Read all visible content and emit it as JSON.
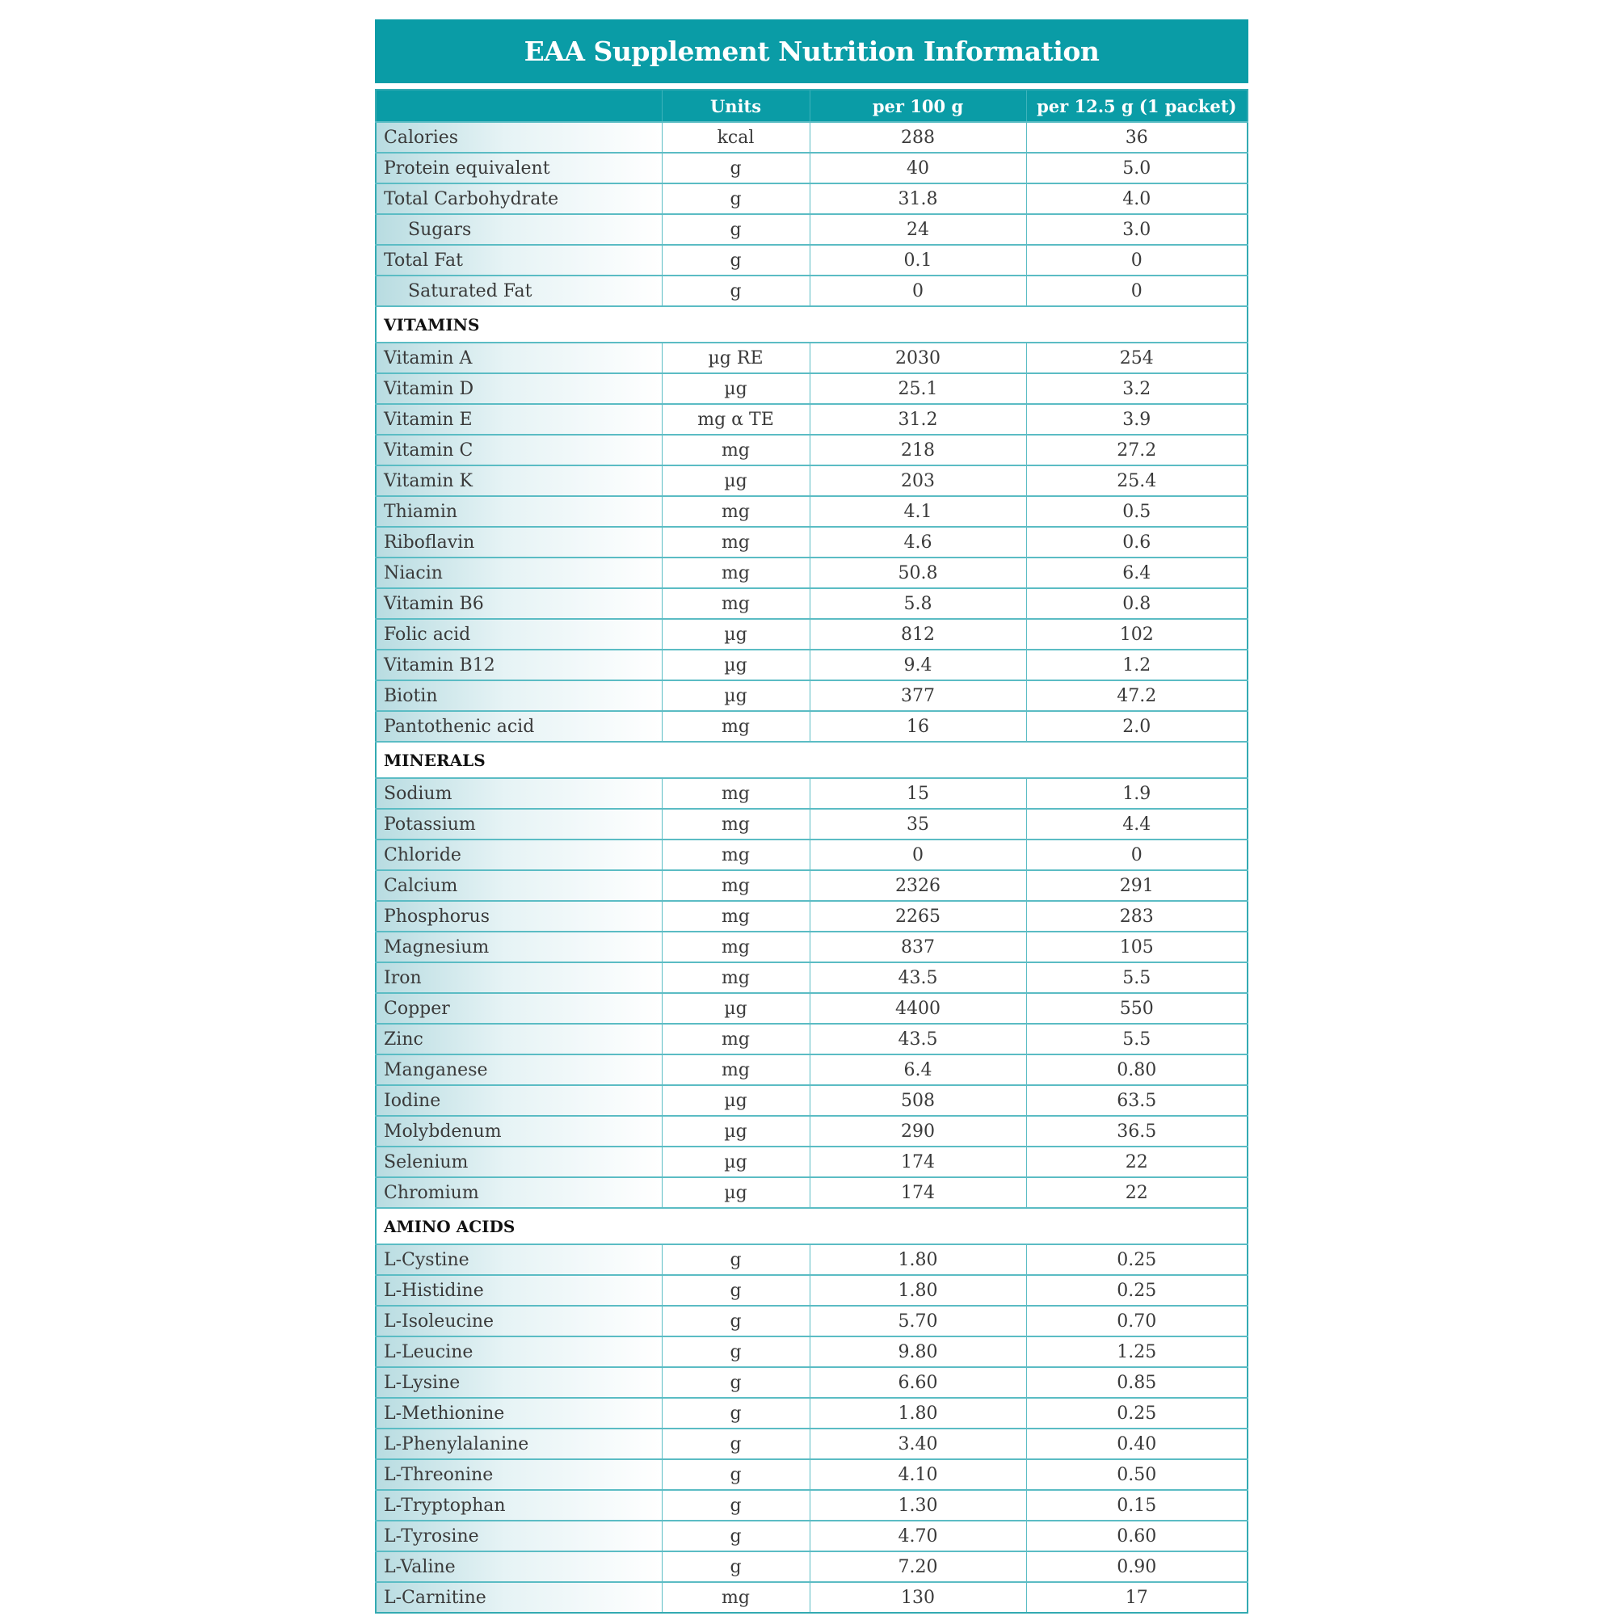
{
  "title": "EAA Supplement Nutrition Information",
  "colors": {
    "header_bg": "#0a9ca6",
    "border": "#5bbcc4",
    "row_gradient_start": "#b8dce1"
  },
  "columns": [
    "",
    "Units",
    "per 100 g",
    "per 12.5 g (1 packet)"
  ],
  "groups": [
    {
      "section": "",
      "rows": [
        {
          "name": "Calories",
          "unit": "kcal",
          "per100": "288",
          "perPacket": "36"
        },
        {
          "name": "Protein equivalent",
          "unit": "g",
          "per100": "40",
          "perPacket": "5.0"
        },
        {
          "name": "Total Carbohydrate",
          "unit": "g",
          "per100": "31.8",
          "perPacket": "4.0"
        },
        {
          "name": "Sugars",
          "unit": "g",
          "per100": "24",
          "perPacket": "3.0",
          "indent": true
        },
        {
          "name": "Total Fat",
          "unit": "g",
          "per100": "0.1",
          "perPacket": "0"
        },
        {
          "name": "Saturated Fat",
          "unit": "g",
          "per100": "0",
          "perPacket": "0",
          "indent": true
        }
      ]
    },
    {
      "section": "VITAMINS",
      "rows": [
        {
          "name": "Vitamin A",
          "unit": "µg RE",
          "per100": "2030",
          "perPacket": "254"
        },
        {
          "name": "Vitamin D",
          "unit": "µg",
          "per100": "25.1",
          "perPacket": "3.2"
        },
        {
          "name": "Vitamin E",
          "unit": "mg α TE",
          "per100": "31.2",
          "perPacket": "3.9"
        },
        {
          "name": "Vitamin C",
          "unit": "mg",
          "per100": "218",
          "perPacket": "27.2"
        },
        {
          "name": "Vitamin K",
          "unit": "µg",
          "per100": "203",
          "perPacket": "25.4"
        },
        {
          "name": "Thiamin",
          "unit": "mg",
          "per100": "4.1",
          "perPacket": "0.5"
        },
        {
          "name": "Riboflavin",
          "unit": "mg",
          "per100": "4.6",
          "perPacket": "0.6"
        },
        {
          "name": "Niacin",
          "unit": "mg",
          "per100": "50.8",
          "perPacket": "6.4"
        },
        {
          "name": "Vitamin B6",
          "unit": "mg",
          "per100": "5.8",
          "perPacket": "0.8"
        },
        {
          "name": "Folic acid",
          "unit": "µg",
          "per100": "812",
          "perPacket": "102"
        },
        {
          "name": "Vitamin B12",
          "unit": "µg",
          "per100": "9.4",
          "perPacket": "1.2"
        },
        {
          "name": "Biotin",
          "unit": "µg",
          "per100": "377",
          "perPacket": "47.2"
        },
        {
          "name": "Pantothenic acid",
          "unit": "mg",
          "per100": "16",
          "perPacket": "2.0"
        }
      ]
    },
    {
      "section": "MINERALS",
      "rows": [
        {
          "name": "Sodium",
          "unit": "mg",
          "per100": "15",
          "perPacket": "1.9"
        },
        {
          "name": "Potassium",
          "unit": "mg",
          "per100": "35",
          "perPacket": "4.4"
        },
        {
          "name": "Chloride",
          "unit": "mg",
          "per100": "0",
          "perPacket": "0"
        },
        {
          "name": "Calcium",
          "unit": "mg",
          "per100": "2326",
          "perPacket": "291"
        },
        {
          "name": "Phosphorus",
          "unit": "mg",
          "per100": "2265",
          "perPacket": "283"
        },
        {
          "name": "Magnesium",
          "unit": "mg",
          "per100": "837",
          "perPacket": "105"
        },
        {
          "name": "Iron",
          "unit": "mg",
          "per100": "43.5",
          "perPacket": "5.5"
        },
        {
          "name": "Copper",
          "unit": "µg",
          "per100": "4400",
          "perPacket": "550"
        },
        {
          "name": "Zinc",
          "unit": "mg",
          "per100": "43.5",
          "perPacket": "5.5"
        },
        {
          "name": "Manganese",
          "unit": "mg",
          "per100": "6.4",
          "perPacket": "0.80"
        },
        {
          "name": "Iodine",
          "unit": "µg",
          "per100": "508",
          "perPacket": "63.5"
        },
        {
          "name": "Molybdenum",
          "unit": "µg",
          "per100": "290",
          "perPacket": "36.5"
        },
        {
          "name": "Selenium",
          "unit": "µg",
          "per100": "174",
          "perPacket": "22"
        },
        {
          "name": "Chromium",
          "unit": "µg",
          "per100": "174",
          "perPacket": "22"
        }
      ]
    },
    {
      "section": "AMINO ACIDS",
      "rows": [
        {
          "name": "L-Cystine",
          "unit": "g",
          "per100": "1.80",
          "perPacket": "0.25"
        },
        {
          "name": "L-Histidine",
          "unit": "g",
          "per100": "1.80",
          "perPacket": "0.25"
        },
        {
          "name": "L-Isoleucine",
          "unit": "g",
          "per100": "5.70",
          "perPacket": "0.70"
        },
        {
          "name": "L-Leucine",
          "unit": "g",
          "per100": "9.80",
          "perPacket": "1.25"
        },
        {
          "name": "L-Lysine",
          "unit": "g",
          "per100": "6.60",
          "perPacket": "0.85"
        },
        {
          "name": "L-Methionine",
          "unit": "g",
          "per100": "1.80",
          "perPacket": "0.25"
        },
        {
          "name": "L-Phenylalanine",
          "unit": "g",
          "per100": "3.40",
          "perPacket": "0.40"
        },
        {
          "name": "L-Threonine",
          "unit": "g",
          "per100": "4.10",
          "perPacket": "0.50"
        },
        {
          "name": "L-Tryptophan",
          "unit": "g",
          "per100": "1.30",
          "perPacket": "0.15"
        },
        {
          "name": "L-Tyrosine",
          "unit": "g",
          "per100": "4.70",
          "perPacket": "0.60"
        },
        {
          "name": "L-Valine",
          "unit": "g",
          "per100": "7.20",
          "perPacket": "0.90"
        },
        {
          "name": "L-Carnitine",
          "unit": "mg",
          "per100": "130",
          "perPacket": "17"
        }
      ]
    }
  ]
}
